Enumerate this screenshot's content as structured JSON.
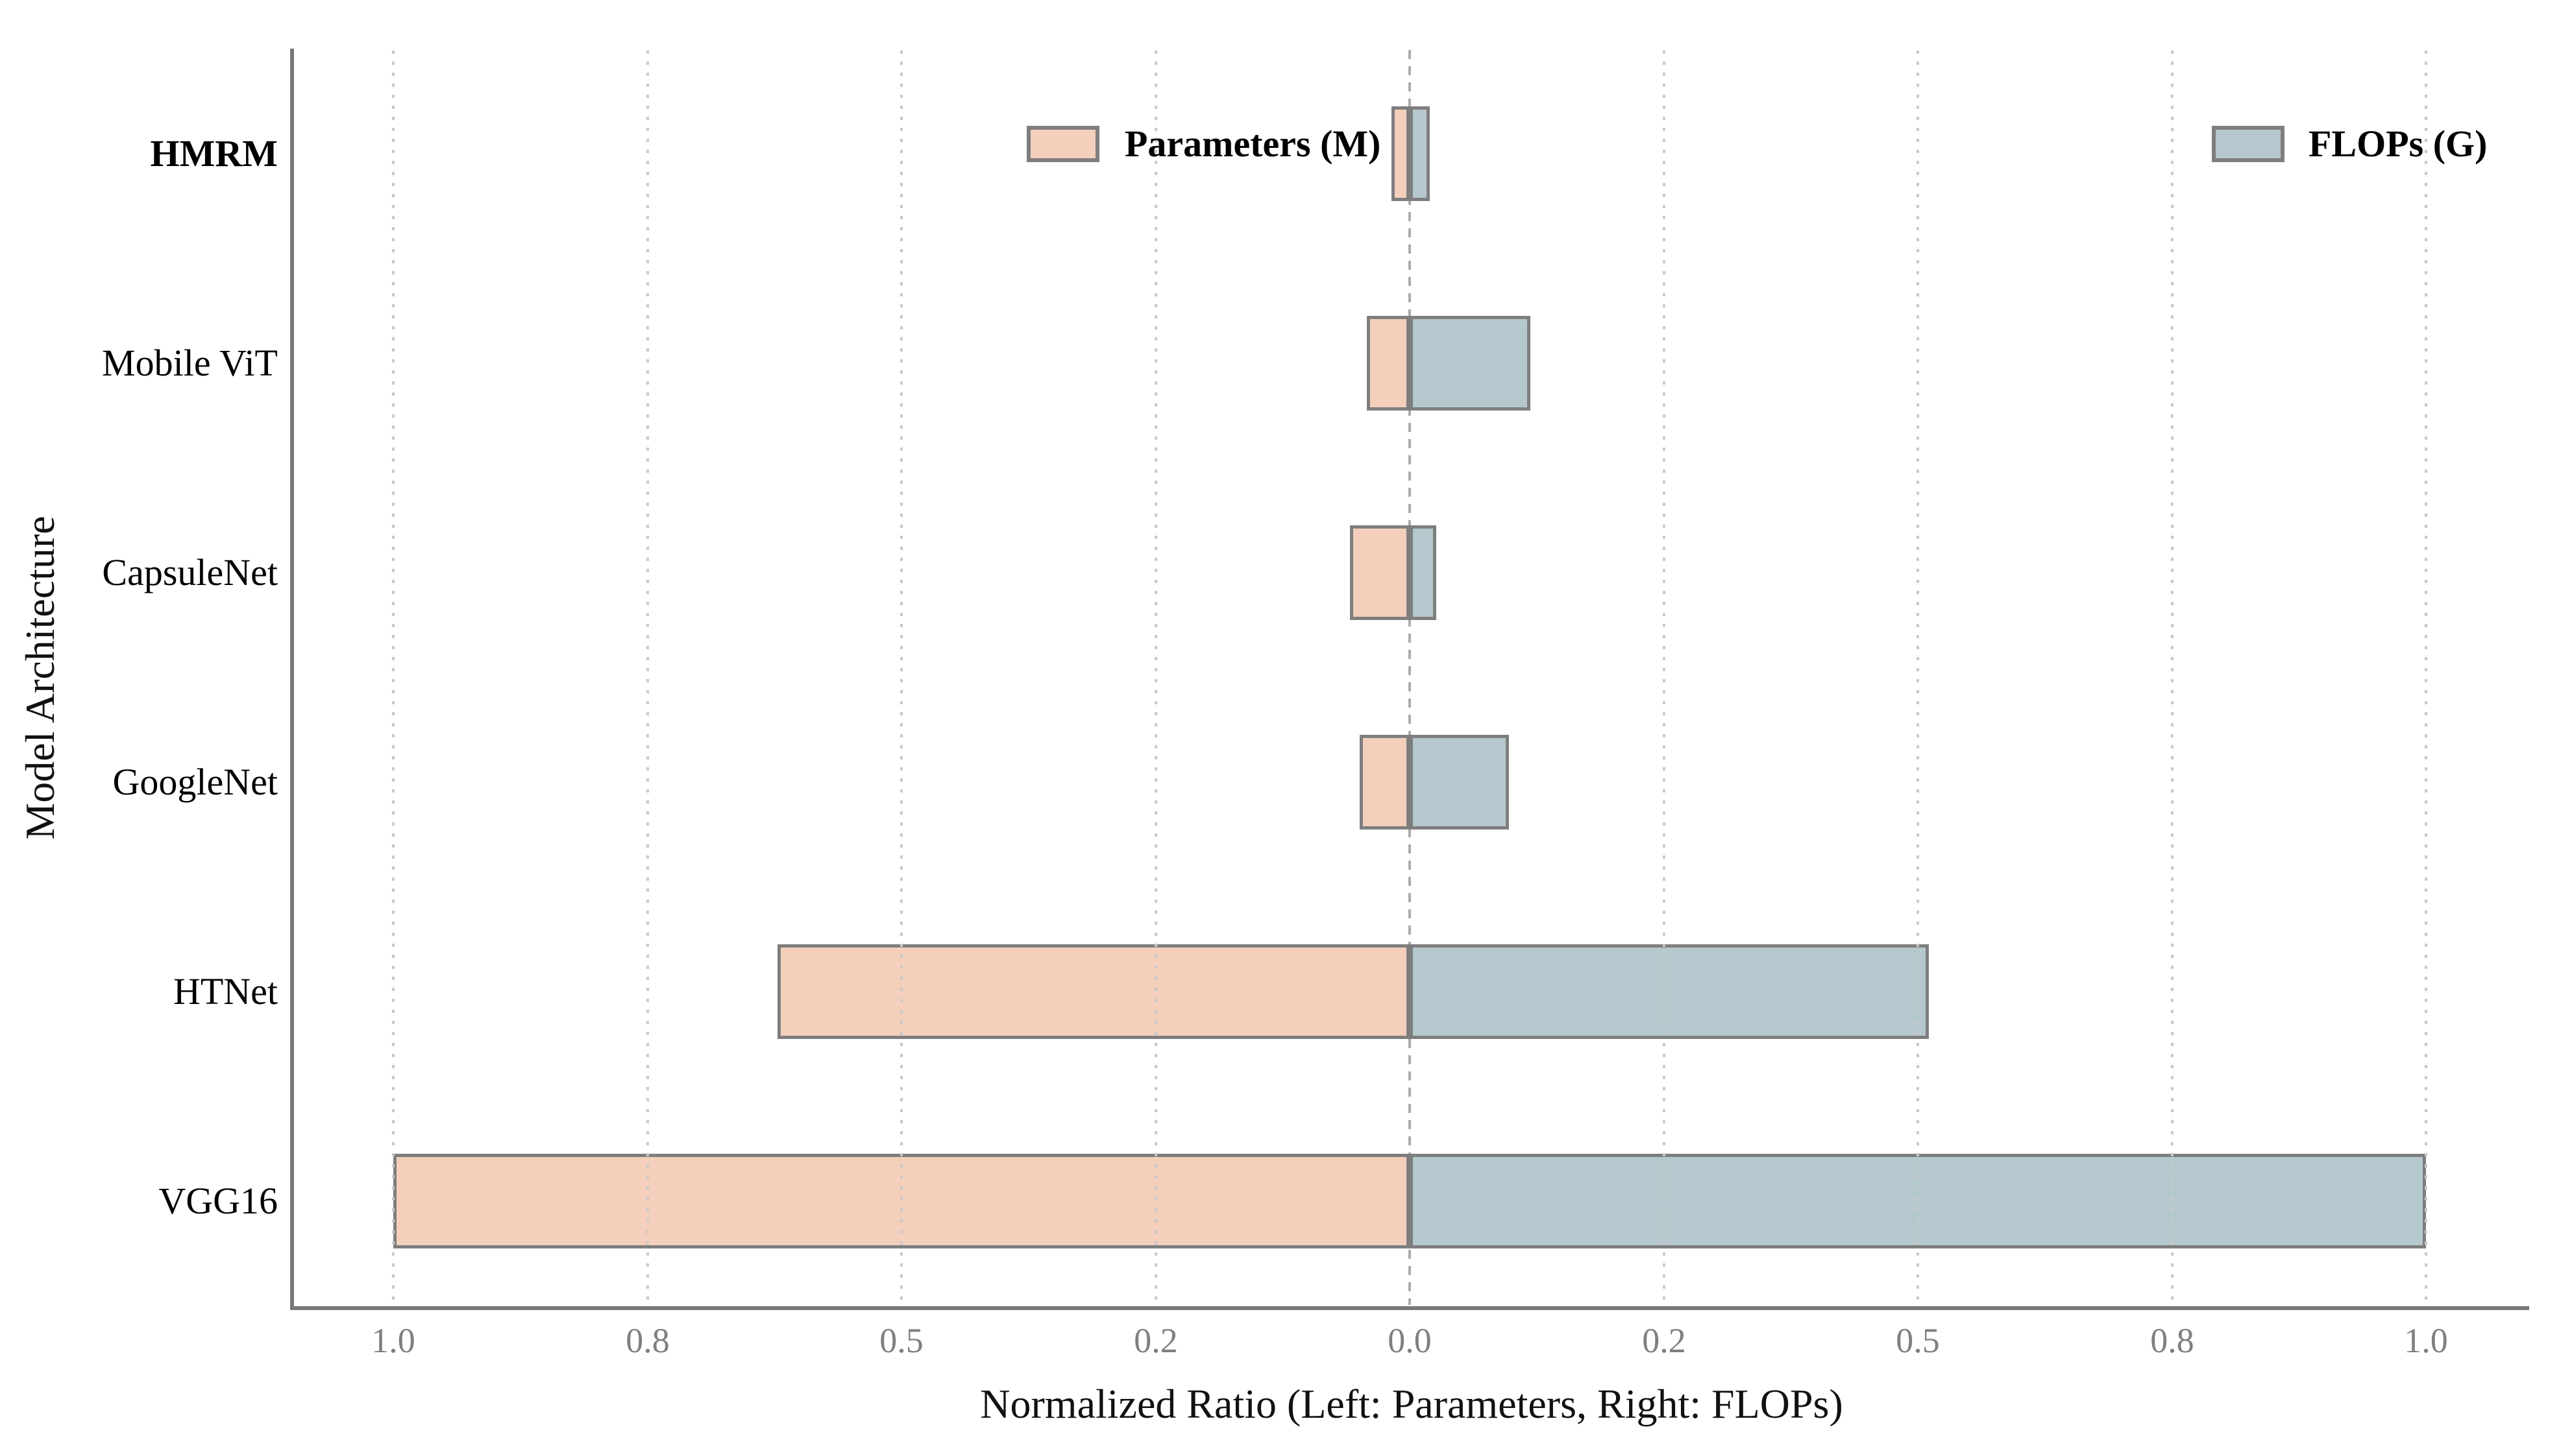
{
  "chart_data": {
    "type": "bar",
    "variant": "diverging_horizontal_tornado",
    "title": "",
    "xlabel": "Normalized Ratio (Left: Parameters, Right: FLOPs)",
    "ylabel": "Model Architecture",
    "categories": [
      "HMRM",
      "Mobile ViT",
      "CapsuleNet",
      "GoogleNet",
      "HTNet",
      "VGG16"
    ],
    "bold_category": "HMRM",
    "series": [
      {
        "name": "Parameters (M)",
        "side": "left",
        "color": "#F4CFBC",
        "values": [
          0.018,
          0.042,
          0.059,
          0.049,
          0.622,
          1.0
        ]
      },
      {
        "name": "FLOPs (G)",
        "side": "right",
        "color": "#B5C8CE",
        "values": [
          0.02,
          0.119,
          0.026,
          0.098,
          0.511,
          1.0
        ]
      }
    ],
    "x_ticks": [
      {
        "pos": -1.0,
        "label": "1.0"
      },
      {
        "pos": -0.75,
        "label": "0.8"
      },
      {
        "pos": -0.5,
        "label": "0.5"
      },
      {
        "pos": -0.25,
        "label": "0.2"
      },
      {
        "pos": 0.0,
        "label": "0.0"
      },
      {
        "pos": 0.25,
        "label": "0.2"
      },
      {
        "pos": 0.5,
        "label": "0.5"
      },
      {
        "pos": 0.75,
        "label": "0.8"
      },
      {
        "pos": 1.0,
        "label": "1.0"
      }
    ],
    "xlim": [
      -1.1,
      1.1
    ],
    "grid": "dotted_vertical_at_ticks",
    "zero_line": "dashed_vertical_at_center",
    "legend_position": "top_inside_left_and_right"
  },
  "style": {
    "background": "#ffffff",
    "bar_edge_color": "#7e7e7e",
    "spine_color": "#787878",
    "grid_color": "#c9c9c9",
    "zero_line_color": "#ababab",
    "tick_label_color": "#7f7f7f",
    "text_color": "#111111"
  }
}
